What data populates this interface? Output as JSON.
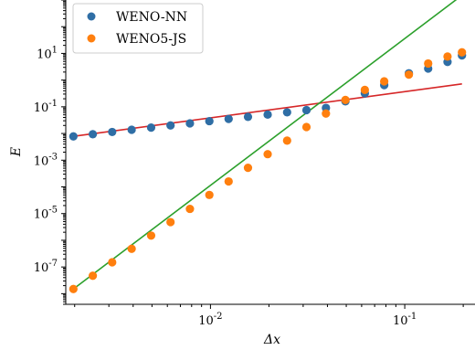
{
  "chart_data": {
    "type": "scatter",
    "title": "",
    "xlabel": "Δx",
    "ylabel": "E",
    "xscale": "log",
    "yscale": "log",
    "xlim": [
      0.0018,
      0.225
    ],
    "ylim": [
      4e-09,
      1000
    ],
    "grid": false,
    "legend_position": "top-left",
    "x_tick_labels": [
      {
        "value": 0.01,
        "base": "10",
        "exp": "-2"
      },
      {
        "value": 0.1,
        "base": "10",
        "exp": "-1"
      }
    ],
    "y_tick_labels": [
      {
        "value": 1e-07,
        "base": "10",
        "exp": "-7"
      },
      {
        "value": 1e-05,
        "base": "10",
        "exp": "-5"
      },
      {
        "value": 0.001,
        "base": "10",
        "exp": "-3"
      },
      {
        "value": 0.1,
        "base": "10",
        "exp": "-1"
      },
      {
        "value": 10,
        "base": "10",
        "exp": "1"
      }
    ],
    "series": [
      {
        "name": "WENO-NN",
        "color": "#2f6ea5",
        "marker": "circle",
        "x": [
          0.00197,
          0.00248,
          0.00312,
          0.00393,
          0.00495,
          0.00623,
          0.00784,
          0.00987,
          0.0124,
          0.0156,
          0.0197,
          0.0248,
          0.0312,
          0.0393,
          0.0495,
          0.0623,
          0.0784,
          0.105,
          0.132,
          0.166,
          0.197
        ],
        "y": [
          0.0078,
          0.0094,
          0.0114,
          0.0138,
          0.0166,
          0.02,
          0.024,
          0.029,
          0.035,
          0.042,
          0.051,
          0.062,
          0.075,
          0.091,
          0.16,
          0.32,
          0.65,
          1.8,
          2.7,
          4.8,
          8.4
        ]
      },
      {
        "name": "WENO5-JS",
        "color": "#ff7f0e",
        "marker": "circle",
        "x": [
          0.00197,
          0.00248,
          0.00312,
          0.00393,
          0.00495,
          0.00623,
          0.00784,
          0.00987,
          0.0124,
          0.0156,
          0.0197,
          0.0248,
          0.0312,
          0.0393,
          0.0495,
          0.0623,
          0.0784,
          0.105,
          0.132,
          0.166,
          0.197
        ],
        "y": [
          1.5e-08,
          4.7e-08,
          1.5e-07,
          4.8e-07,
          1.5e-06,
          4.8e-06,
          1.5e-05,
          5e-05,
          0.00016,
          0.00052,
          0.00168,
          0.0054,
          0.0175,
          0.056,
          0.18,
          0.43,
          0.9,
          1.6,
          4.2,
          7.6,
          11.0
        ]
      }
    ],
    "reference_lines": [
      {
        "color": "#d62728",
        "x": [
          0.00197,
          0.197
        ],
        "y": [
          0.0078,
          0.72
        ]
      },
      {
        "color": "#2ca02c",
        "x": [
          0.00197,
          0.197
        ],
        "y": [
          1.5e-08,
          1500
        ]
      }
    ]
  }
}
